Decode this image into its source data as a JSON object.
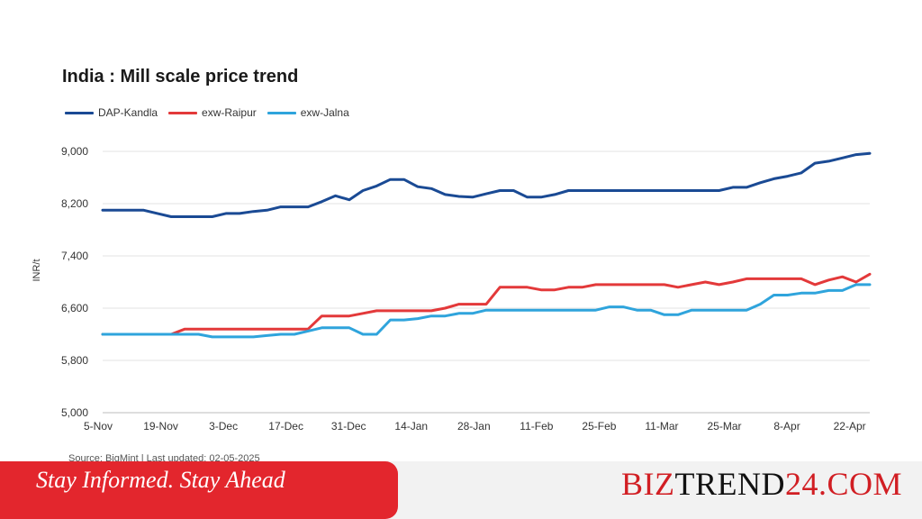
{
  "chart_data": {
    "type": "line",
    "title": "India : Mill scale price trend",
    "ylabel": "INR/t",
    "xlabel": "",
    "ylim": [
      5000,
      9000
    ],
    "yticks": [
      5000,
      5800,
      6600,
      7400,
      8200,
      9000
    ],
    "ytick_labels": [
      "5,000",
      "5,800",
      "6,600",
      "7,400",
      "8,200",
      "9,000"
    ],
    "x_tick_labels": [
      "5-Nov",
      "19-Nov",
      "3-Dec",
      "17-Dec",
      "31-Dec",
      "14-Jan",
      "28-Jan",
      "11-Feb",
      "25-Feb",
      "11-Mar",
      "25-Mar",
      "8-Apr",
      "22-Apr"
    ],
    "grid": "horizontal",
    "legend_position": "top-left",
    "series": [
      {
        "name": "DAP-Kandla",
        "color": "#1a4a94",
        "values": [
          8100,
          8100,
          8100,
          8100,
          8050,
          8000,
          8000,
          8000,
          8000,
          8050,
          8050,
          8080,
          8100,
          8150,
          8150,
          8150,
          8230,
          8320,
          8260,
          8400,
          8470,
          8570,
          8570,
          8460,
          8430,
          8340,
          8310,
          8300,
          8350,
          8400,
          8400,
          8300,
          8300,
          8340,
          8400,
          8400,
          8400,
          8400,
          8400,
          8400,
          8400,
          8400,
          8400,
          8400,
          8400,
          8400,
          8450,
          8450,
          8520,
          8580,
          8620,
          8670,
          8820,
          8850,
          8900,
          8950,
          8970
        ]
      },
      {
        "name": "exw-Raipur",
        "color": "#e3393a",
        "values": [
          6200,
          6200,
          6200,
          6200,
          6200,
          6200,
          6280,
          6280,
          6280,
          6280,
          6280,
          6280,
          6280,
          6280,
          6280,
          6280,
          6480,
          6480,
          6480,
          6520,
          6560,
          6560,
          6560,
          6560,
          6560,
          6600,
          6660,
          6660,
          6660,
          6920,
          6920,
          6920,
          6880,
          6880,
          6920,
          6920,
          6960,
          6960,
          6960,
          6960,
          6960,
          6960,
          6920,
          6960,
          7000,
          6960,
          7000,
          7050,
          7050,
          7050,
          7050,
          7050,
          6960,
          7030,
          7080,
          7000,
          7120
        ]
      },
      {
        "name": "exw-Jalna",
        "color": "#2fa4dc",
        "values": [
          6200,
          6200,
          6200,
          6200,
          6200,
          6200,
          6200,
          6200,
          6160,
          6160,
          6160,
          6160,
          6180,
          6200,
          6200,
          6250,
          6300,
          6300,
          6300,
          6200,
          6200,
          6420,
          6420,
          6440,
          6480,
          6480,
          6520,
          6520,
          6570,
          6570,
          6570,
          6570,
          6570,
          6570,
          6570,
          6570,
          6570,
          6620,
          6620,
          6570,
          6570,
          6500,
          6500,
          6570,
          6570,
          6570,
          6570,
          6570,
          6660,
          6800,
          6800,
          6830,
          6830,
          6870,
          6870,
          6960,
          6960
        ]
      }
    ]
  },
  "source_text": "Source: BigMint | Last updated: 02-05-2025",
  "footer": {
    "tagline": "Stay Informed. Stay Ahead",
    "brand_part1": "BIZ",
    "brand_part2": "TREND",
    "brand_part3": "24.COM"
  },
  "colors": {
    "banner_red": "#e3262d",
    "footer_gray": "#f2f2f2"
  }
}
